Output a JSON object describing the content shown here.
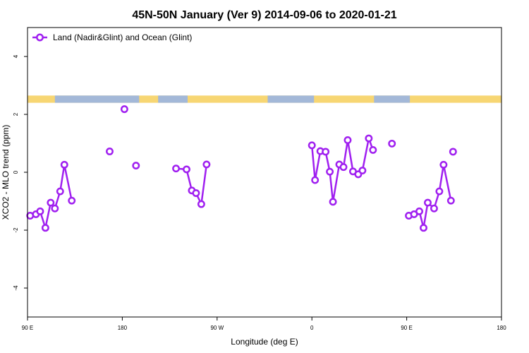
{
  "chart_data": {
    "type": "line",
    "title": "45N-50N January (Ver 9)   2014-09-06 to 2020-01-21",
    "xlabel": "Longitude (deg E)",
    "ylabel": "XCO2 - MLO trend (ppm)",
    "xlim": [
      90,
      540
    ],
    "ylim": [
      -5,
      5
    ],
    "x_ticks": [
      {
        "value": 90,
        "label": "90 E"
      },
      {
        "value": 180,
        "label": "180"
      },
      {
        "value": 270,
        "label": "90 W"
      },
      {
        "value": 360,
        "label": "0"
      },
      {
        "value": 450,
        "label": "90 E"
      },
      {
        "value": 540,
        "label": "180"
      }
    ],
    "y_ticks": [
      {
        "value": -4,
        "label": "-4"
      },
      {
        "value": -2,
        "label": "-2"
      },
      {
        "value": 0,
        "label": "0"
      },
      {
        "value": 2,
        "label": "2"
      },
      {
        "value": 4,
        "label": "4"
      }
    ],
    "grid": false,
    "legend_position": "top-left",
    "map_strip": {
      "y_top": 2.65,
      "y_bottom": 2.4,
      "land_color": "#f7d673",
      "ocean_color": "#a3b8d8"
    },
    "series": [
      {
        "name": "Land (Nadir&Glint) and Ocean (Glint)",
        "color": "#a020f0",
        "segments": [
          [
            [
              92.5,
              -1.5
            ],
            [
              98,
              -1.45
            ],
            [
              102,
              -1.35
            ],
            [
              107,
              -1.92
            ],
            [
              112,
              -1.05
            ],
            [
              116,
              -1.25
            ],
            [
              121,
              -0.66
            ],
            [
              125,
              0.26
            ],
            [
              132,
              -0.98
            ]
          ],
          [
            [
              168,
              0.72
            ]
          ],
          [
            [
              182,
              2.18
            ]
          ],
          [
            [
              193,
              0.23
            ]
          ],
          [
            [
              231,
              0.13
            ],
            [
              241,
              0.1
            ],
            [
              246,
              -0.63
            ],
            [
              250,
              -0.72
            ],
            [
              255,
              -1.1
            ],
            [
              260,
              0.27
            ]
          ],
          [
            [
              360,
              0.93
            ],
            [
              363,
              -0.27
            ],
            [
              368,
              0.73
            ],
            [
              373,
              0.71
            ],
            [
              377,
              0.02
            ],
            [
              380,
              -1.02
            ],
            [
              386,
              0.27
            ],
            [
              390,
              0.18
            ],
            [
              394,
              1.11
            ],
            [
              399,
              0.03
            ],
            [
              404,
              -0.07
            ],
            [
              408,
              0.06
            ],
            [
              414,
              1.17
            ],
            [
              418,
              0.77
            ]
          ],
          [
            [
              436,
              0.99
            ]
          ],
          [
            [
              494,
              0.71
            ]
          ],
          [
            [
              452,
              -1.5
            ],
            [
              457,
              -1.45
            ],
            [
              462,
              -1.35
            ],
            [
              466,
              -1.92
            ],
            [
              470,
              -1.05
            ],
            [
              476,
              -1.25
            ],
            [
              481,
              -0.66
            ],
            [
              485,
              0.26
            ],
            [
              492,
              -0.98
            ]
          ]
        ]
      }
    ]
  }
}
